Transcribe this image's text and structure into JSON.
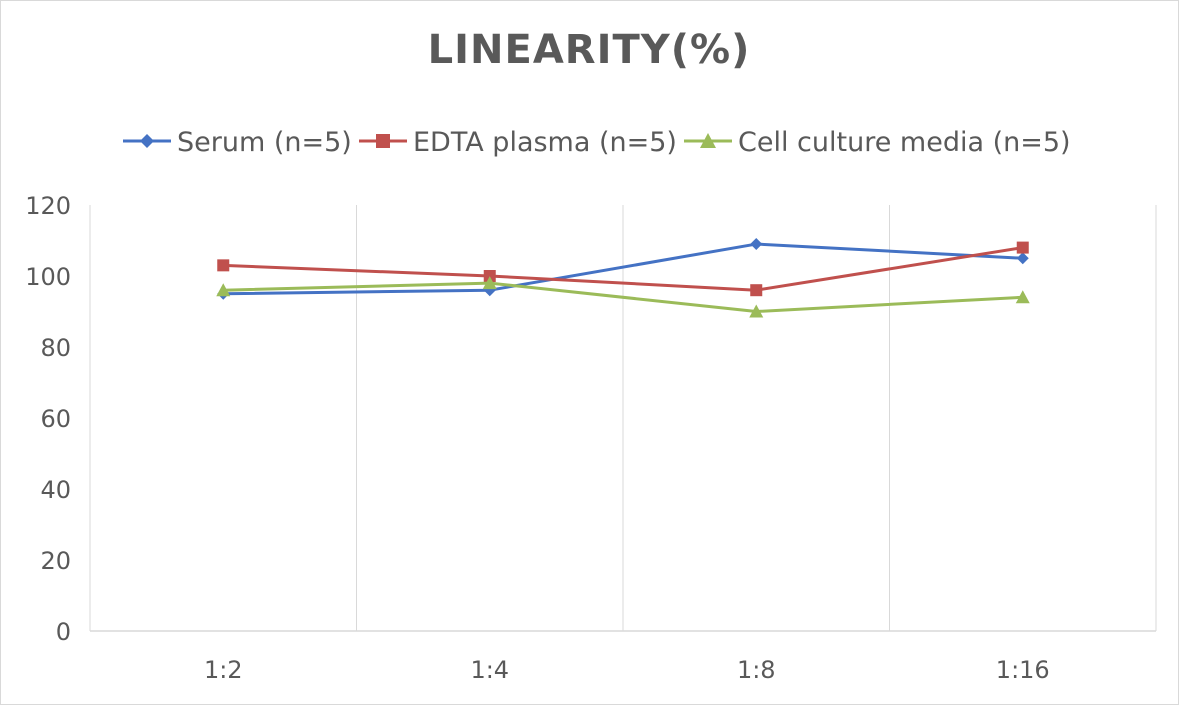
{
  "chart_data": {
    "type": "line",
    "title": "LINEARITY(%)",
    "xlabel": "",
    "ylabel": "",
    "categories": [
      "1:2",
      "1:4",
      "1:8",
      "1:16"
    ],
    "ylim": [
      0,
      120
    ],
    "yticks": [
      0,
      20,
      40,
      60,
      80,
      100,
      120
    ],
    "grid": "vertical",
    "legend_position": "top",
    "series": [
      {
        "name": "Serum (n=5)",
        "values": [
          95,
          96,
          109,
          105
        ],
        "color": "#4472c4",
        "marker": "diamond"
      },
      {
        "name": "EDTA plasma (n=5)",
        "values": [
          103,
          100,
          96,
          108
        ],
        "color": "#c0504d",
        "marker": "square"
      },
      {
        "name": "Cell culture media (n=5)",
        "values": [
          96,
          98,
          90,
          94
        ],
        "color": "#9bbb59",
        "marker": "triangle"
      }
    ]
  }
}
